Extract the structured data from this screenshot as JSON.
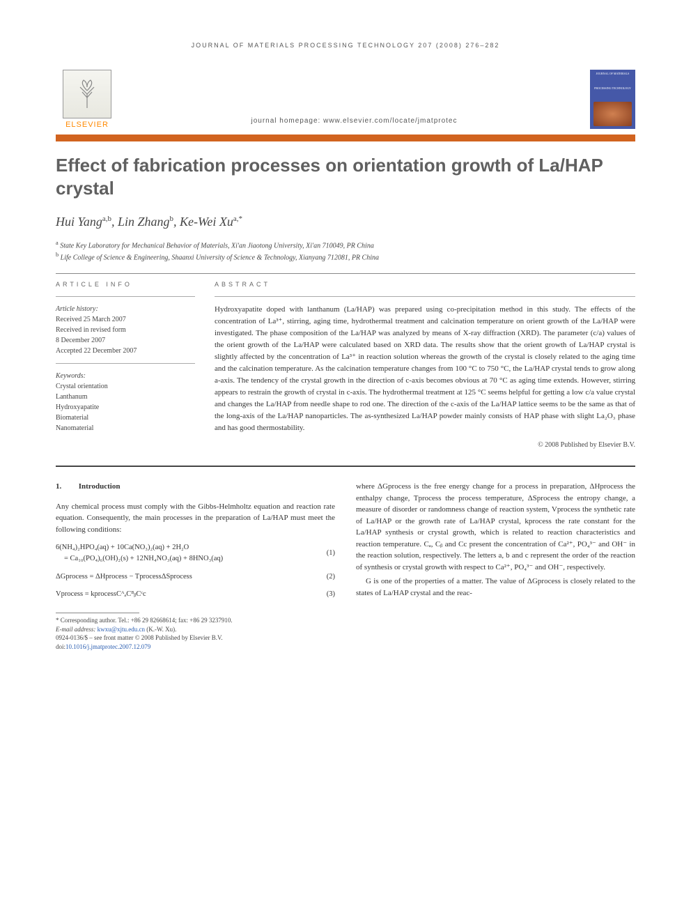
{
  "running_head": "JOURNAL OF MATERIALS PROCESSING TECHNOLOGY 207 (2008) 276–282",
  "publisher": {
    "name": "ELSEVIER",
    "logo_color": "#ff8800"
  },
  "journal_homepage": "journal homepage: www.elsevier.com/locate/jmatprotec",
  "cover": {
    "line1": "JOURNAL OF MATERIALS",
    "line2": "PROCESSING TECHNOLOGY",
    "bg": "#4558a8"
  },
  "accent_bar_color": "#d1631f",
  "title": "Effect of fabrication processes on orientation growth of La/HAP crystal",
  "authors_html": "Hui Yang<sup>a,b</sup>, Lin Zhang<sup>b</sup>, Ke-Wei Xu<sup>a,*</sup>",
  "affiliations": [
    {
      "mark": "a",
      "text": "State Key Laboratory for Mechanical Behavior of Materials, Xi'an Jiaotong University, Xi'an 710049, PR China"
    },
    {
      "mark": "b",
      "text": "Life College of Science & Engineering, Shaanxi University of Science & Technology, Xianyang 712081, PR China"
    }
  ],
  "info": {
    "label": "ARTICLE INFO",
    "history_title": "Article history:",
    "history": [
      "Received 25 March 2007",
      "Received in revised form",
      "8 December 2007",
      "Accepted 22 December 2007"
    ],
    "keywords_title": "Keywords:",
    "keywords": [
      "Crystal orientation",
      "Lanthanum",
      "Hydroxyapatite",
      "Biomaterial",
      "Nanomaterial"
    ]
  },
  "abstract": {
    "label": "ABSTRACT",
    "text": "Hydroxyapatite doped with lanthanum (La/HAP) was prepared using co-precipitation method in this study. The effects of the concentration of La³⁺, stirring, aging time, hydrothermal treatment and calcination temperature on orient growth of the La/HAP were investigated. The phase composition of the La/HAP was analyzed by means of X-ray diffraction (XRD). The parameter (c/a) values of the orient growth of the La/HAP were calculated based on XRD data. The results show that the orient growth of La/HAP crystal is slightly affected by the concentration of La³⁺ in reaction solution whereas the growth of the crystal is closely related to the aging time and the calcination temperature. As the calcination temperature changes from 100 °C to 750 °C, the La/HAP crystal tends to grow along a-axis. The tendency of the crystal growth in the direction of c-axis becomes obvious at 70 °C as aging time extends. However, stirring appears to restrain the growth of crystal in c-axis. The hydrothermal treatment at 125 °C seems helpful for getting a low c/a value crystal and changes the La/HAP from needle shape to rod one. The direction of the c-axis of the La/HAP lattice seems to be the same as that of the long-axis of the La/HAP nanoparticles. The as-synthesized La/HAP powder mainly consists of HAP phase with slight La₂O₃ phase and has good thermostability.",
    "copyright": "© 2008 Published by Elsevier B.V."
  },
  "section1": {
    "num": "1.",
    "head": "Introduction",
    "para1": "Any chemical process must comply with the Gibbs-Helmholtz equation and reaction rate equation. Consequently, the main processes in the preparation of La/HAP must meet the following conditions:",
    "eq1_l1": "6(NH₄)₂HPO₄(aq) + 10Ca(NO₃)₂(aq) + 2H₂O",
    "eq1_l2": "= Ca₁₀(PO₄)₆(OH)₂(s) + 12NH₄NO₃(aq) + 8HNO₃(aq)",
    "eq1_num": "(1)",
    "eq2": "ΔGprocess = ΔHprocess − TprocessΔSprocess",
    "eq2_num": "(2)",
    "eq3": "Vprocess = kprocessCᴬₐCᴮᵦCᶜc",
    "eq3_num": "(3)",
    "col2_p1": "where ΔGprocess is the free energy change for a process in preparation, ΔHprocess the enthalpy change, Tprocess the process temperature, ΔSprocess the entropy change, a measure of disorder or randomness change of reaction system, Vprocess the synthetic rate of La/HAP or the growth rate of La/HAP crystal, kprocess the rate constant for the La/HAP synthesis or crystal growth, which is related to reaction characteristics and reaction temperature. Cₐ, Cᵦ and Cc present the concentration of Ca²⁺, PO₄³⁻ and OH⁻ in the reaction solution, respectively. The letters a, b and c represent the order of the reaction of synthesis or crystal growth with respect to Ca²⁺, PO₄³⁻ and OH⁻, respectively.",
    "col2_p2": "G is one of the properties of a matter. The value of ΔGprocess is closely related to the states of La/HAP crystal and the reac-"
  },
  "footnote": {
    "corr": "* Corresponding author. Tel.: +86 29 82668614; fax: +86 29 3237910.",
    "email_label": "E-mail address:",
    "email": "kwxu@xjtu.edu.cn",
    "email_suffix": "(K.-W. Xu).",
    "issn": "0924-0136/$ – see front matter © 2008 Published by Elsevier B.V.",
    "doi_label": "doi:",
    "doi": "10.1016/j.jmatprotec.2007.12.079"
  },
  "colors": {
    "title": "#606060",
    "text": "#333333",
    "link": "#2a5db0",
    "rule": "#888888"
  }
}
